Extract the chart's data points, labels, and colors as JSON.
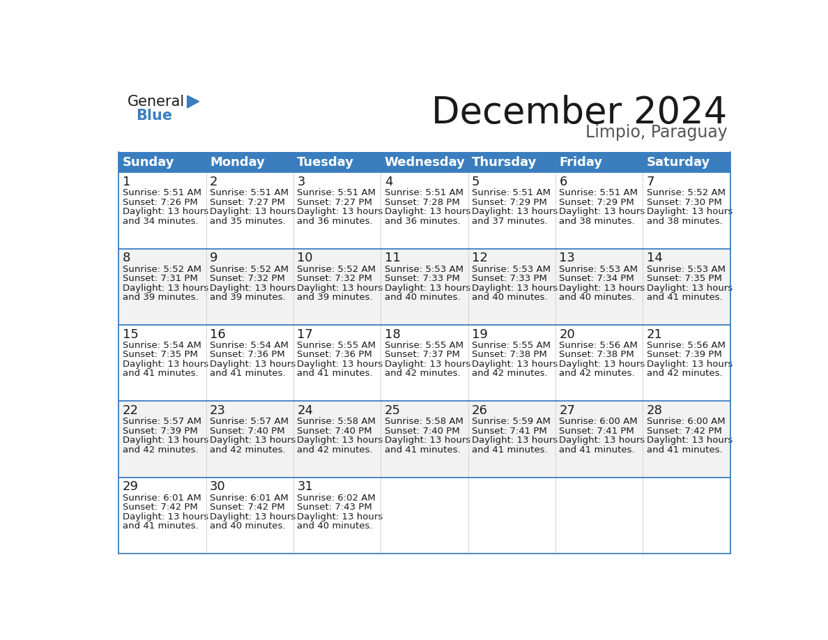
{
  "title": "December 2024",
  "subtitle": "Limpio, Paraguay",
  "header_color": "#3a7ebf",
  "header_text_color": "#ffffff",
  "cell_bg_white": "#ffffff",
  "cell_bg_gray": "#f2f2f2",
  "border_color": "#3a7ebf",
  "days_of_week": [
    "Sunday",
    "Monday",
    "Tuesday",
    "Wednesday",
    "Thursday",
    "Friday",
    "Saturday"
  ],
  "calendar_data": [
    [
      {
        "day": 1,
        "sunrise": "5:51 AM",
        "sunset": "7:26 PM",
        "daylight_hours": 13,
        "daylight_minutes": 34
      },
      {
        "day": 2,
        "sunrise": "5:51 AM",
        "sunset": "7:27 PM",
        "daylight_hours": 13,
        "daylight_minutes": 35
      },
      {
        "day": 3,
        "sunrise": "5:51 AM",
        "sunset": "7:27 PM",
        "daylight_hours": 13,
        "daylight_minutes": 36
      },
      {
        "day": 4,
        "sunrise": "5:51 AM",
        "sunset": "7:28 PM",
        "daylight_hours": 13,
        "daylight_minutes": 36
      },
      {
        "day": 5,
        "sunrise": "5:51 AM",
        "sunset": "7:29 PM",
        "daylight_hours": 13,
        "daylight_minutes": 37
      },
      {
        "day": 6,
        "sunrise": "5:51 AM",
        "sunset": "7:29 PM",
        "daylight_hours": 13,
        "daylight_minutes": 38
      },
      {
        "day": 7,
        "sunrise": "5:52 AM",
        "sunset": "7:30 PM",
        "daylight_hours": 13,
        "daylight_minutes": 38
      }
    ],
    [
      {
        "day": 8,
        "sunrise": "5:52 AM",
        "sunset": "7:31 PM",
        "daylight_hours": 13,
        "daylight_minutes": 39
      },
      {
        "day": 9,
        "sunrise": "5:52 AM",
        "sunset": "7:32 PM",
        "daylight_hours": 13,
        "daylight_minutes": 39
      },
      {
        "day": 10,
        "sunrise": "5:52 AM",
        "sunset": "7:32 PM",
        "daylight_hours": 13,
        "daylight_minutes": 39
      },
      {
        "day": 11,
        "sunrise": "5:53 AM",
        "sunset": "7:33 PM",
        "daylight_hours": 13,
        "daylight_minutes": 40
      },
      {
        "day": 12,
        "sunrise": "5:53 AM",
        "sunset": "7:33 PM",
        "daylight_hours": 13,
        "daylight_minutes": 40
      },
      {
        "day": 13,
        "sunrise": "5:53 AM",
        "sunset": "7:34 PM",
        "daylight_hours": 13,
        "daylight_minutes": 40
      },
      {
        "day": 14,
        "sunrise": "5:53 AM",
        "sunset": "7:35 PM",
        "daylight_hours": 13,
        "daylight_minutes": 41
      }
    ],
    [
      {
        "day": 15,
        "sunrise": "5:54 AM",
        "sunset": "7:35 PM",
        "daylight_hours": 13,
        "daylight_minutes": 41
      },
      {
        "day": 16,
        "sunrise": "5:54 AM",
        "sunset": "7:36 PM",
        "daylight_hours": 13,
        "daylight_minutes": 41
      },
      {
        "day": 17,
        "sunrise": "5:55 AM",
        "sunset": "7:36 PM",
        "daylight_hours": 13,
        "daylight_minutes": 41
      },
      {
        "day": 18,
        "sunrise": "5:55 AM",
        "sunset": "7:37 PM",
        "daylight_hours": 13,
        "daylight_minutes": 42
      },
      {
        "day": 19,
        "sunrise": "5:55 AM",
        "sunset": "7:38 PM",
        "daylight_hours": 13,
        "daylight_minutes": 42
      },
      {
        "day": 20,
        "sunrise": "5:56 AM",
        "sunset": "7:38 PM",
        "daylight_hours": 13,
        "daylight_minutes": 42
      },
      {
        "day": 21,
        "sunrise": "5:56 AM",
        "sunset": "7:39 PM",
        "daylight_hours": 13,
        "daylight_minutes": 42
      }
    ],
    [
      {
        "day": 22,
        "sunrise": "5:57 AM",
        "sunset": "7:39 PM",
        "daylight_hours": 13,
        "daylight_minutes": 42
      },
      {
        "day": 23,
        "sunrise": "5:57 AM",
        "sunset": "7:40 PM",
        "daylight_hours": 13,
        "daylight_minutes": 42
      },
      {
        "day": 24,
        "sunrise": "5:58 AM",
        "sunset": "7:40 PM",
        "daylight_hours": 13,
        "daylight_minutes": 42
      },
      {
        "day": 25,
        "sunrise": "5:58 AM",
        "sunset": "7:40 PM",
        "daylight_hours": 13,
        "daylight_minutes": 41
      },
      {
        "day": 26,
        "sunrise": "5:59 AM",
        "sunset": "7:41 PM",
        "daylight_hours": 13,
        "daylight_minutes": 41
      },
      {
        "day": 27,
        "sunrise": "6:00 AM",
        "sunset": "7:41 PM",
        "daylight_hours": 13,
        "daylight_minutes": 41
      },
      {
        "day": 28,
        "sunrise": "6:00 AM",
        "sunset": "7:42 PM",
        "daylight_hours": 13,
        "daylight_minutes": 41
      }
    ],
    [
      {
        "day": 29,
        "sunrise": "6:01 AM",
        "sunset": "7:42 PM",
        "daylight_hours": 13,
        "daylight_minutes": 41
      },
      {
        "day": 30,
        "sunrise": "6:01 AM",
        "sunset": "7:42 PM",
        "daylight_hours": 13,
        "daylight_minutes": 40
      },
      {
        "day": 31,
        "sunrise": "6:02 AM",
        "sunset": "7:43 PM",
        "daylight_hours": 13,
        "daylight_minutes": 40
      },
      null,
      null,
      null,
      null
    ]
  ],
  "title_fontsize": 38,
  "subtitle_fontsize": 17,
  "header_fontsize": 13,
  "day_num_fontsize": 13,
  "cell_text_fontsize": 9.5,
  "logo_general_color": "#1a1a1a",
  "logo_blue_color": "#3a7ebf",
  "logo_triangle_color": "#3a7ebf"
}
